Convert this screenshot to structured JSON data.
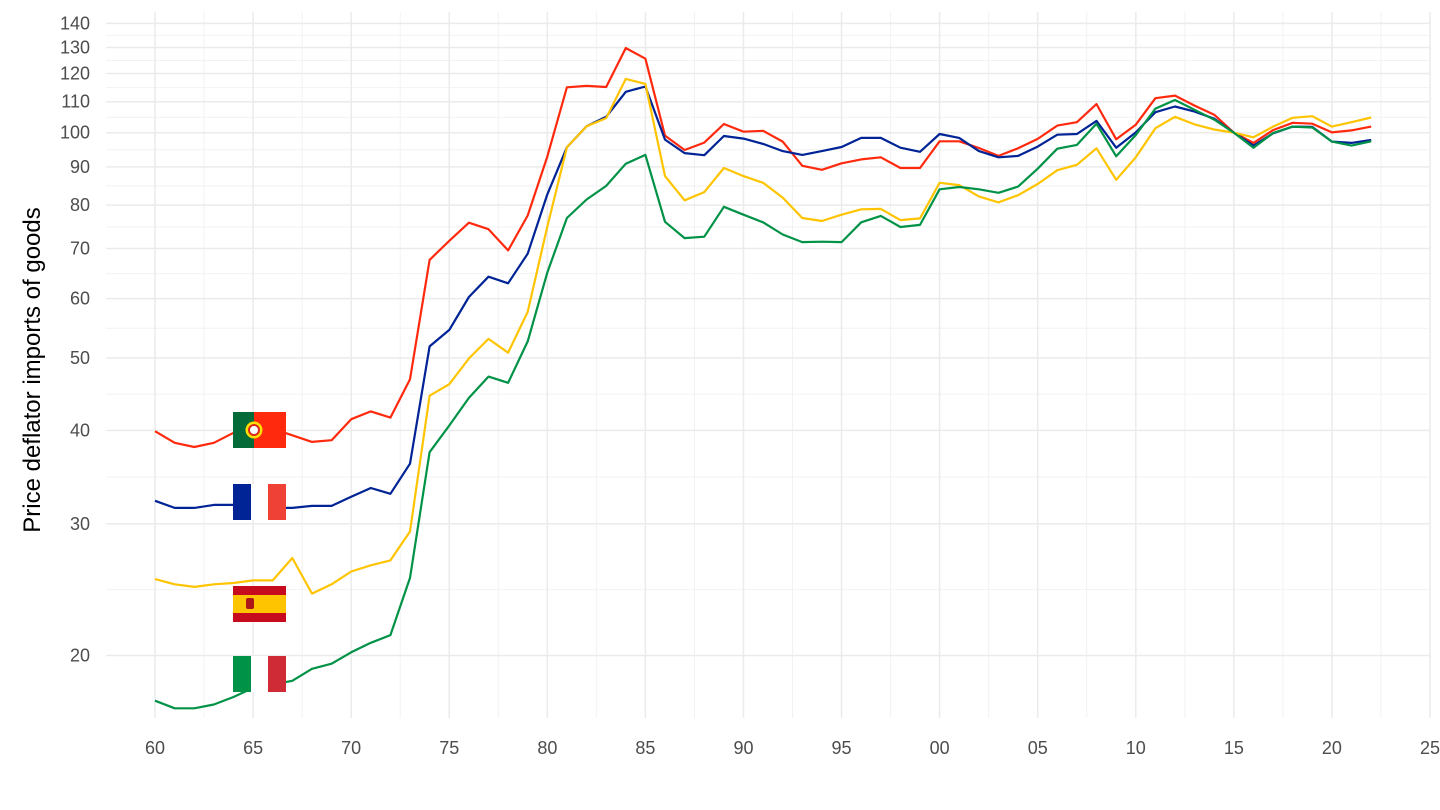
{
  "chart_data": {
    "type": "line",
    "title": "",
    "xlabel": "",
    "ylabel": "Price deflator imports of goods",
    "y_scale": "log",
    "ylim": [
      16.5,
      145
    ],
    "xlim": [
      1957.5,
      2025
    ],
    "grid": true,
    "legend": "flags at series start",
    "x_ticks": [
      {
        "value": 1960,
        "label": "60"
      },
      {
        "value": 1965,
        "label": "65"
      },
      {
        "value": 1970,
        "label": "70"
      },
      {
        "value": 1975,
        "label": "75"
      },
      {
        "value": 1980,
        "label": "80"
      },
      {
        "value": 1985,
        "label": "85"
      },
      {
        "value": 1990,
        "label": "90"
      },
      {
        "value": 1995,
        "label": "95"
      },
      {
        "value": 2000,
        "label": "00"
      },
      {
        "value": 2005,
        "label": "05"
      },
      {
        "value": 2010,
        "label": "10"
      },
      {
        "value": 2015,
        "label": "15"
      },
      {
        "value": 2020,
        "label": "20"
      },
      {
        "value": 2025,
        "label": "25"
      }
    ],
    "y_ticks": [
      20,
      30,
      40,
      50,
      60,
      70,
      80,
      90,
      100,
      110,
      120,
      130,
      140
    ],
    "series": [
      {
        "flag": "portugal-flag-icon",
        "color": "#ff2a0e",
        "x": [
          1960,
          1961,
          1962,
          1963,
          1964,
          1965,
          1966,
          1967,
          1968,
          1969,
          1970,
          1971,
          1972,
          1973,
          1974,
          1975,
          1976,
          1977,
          1978,
          1979,
          1980,
          1981,
          1982,
          1983,
          1984,
          1985,
          1986,
          1987,
          1988,
          1989,
          1990,
          1991,
          1992,
          1993,
          1994,
          1995,
          1996,
          1997,
          1998,
          1999,
          2000,
          2001,
          2002,
          2003,
          2004,
          2005,
          2006,
          2007,
          2008,
          2009,
          2010,
          2011,
          2012,
          2013,
          2014,
          2015,
          2016,
          2017,
          2018,
          2019,
          2020,
          2021,
          2022
        ],
        "y": [
          39.9,
          38.5,
          38.0,
          38.5,
          39.7,
          40.3,
          40.2,
          39.4,
          38.6,
          38.8,
          41.4,
          42.4,
          41.6,
          46.8,
          67.6,
          71.7,
          75.8,
          74.3,
          69.6,
          77.5,
          92.9,
          115.0,
          115.5,
          115.1,
          129.8,
          125.6,
          99.1,
          94.8,
          97.0,
          102.7,
          100.3,
          100.6,
          97.3,
          90.3,
          89.2,
          91.0,
          92.1,
          92.7,
          89.7,
          89.7,
          97.4,
          97.4,
          95.4,
          93.1,
          95.3,
          98.1,
          102.2,
          103.3,
          109.2,
          98.0,
          102.5,
          111.2,
          112.1,
          108.7,
          105.7,
          100.0,
          96.9,
          100.8,
          103.1,
          102.8,
          100.1,
          100.7,
          101.9
        ]
      },
      {
        "flag": "france-flag-icon",
        "color": "#002395",
        "x": [
          1960,
          1961,
          1962,
          1963,
          1964,
          1965,
          1966,
          1967,
          1968,
          1969,
          1970,
          1971,
          1972,
          1973,
          1974,
          1975,
          1976,
          1977,
          1978,
          1979,
          1980,
          1981,
          1982,
          1983,
          1984,
          1985,
          1986,
          1987,
          1988,
          1989,
          1990,
          1991,
          1992,
          1993,
          1994,
          1995,
          1996,
          1997,
          1998,
          1999,
          2000,
          2001,
          2002,
          2003,
          2004,
          2005,
          2006,
          2007,
          2008,
          2009,
          2010,
          2011,
          2012,
          2013,
          2014,
          2015,
          2016,
          2017,
          2018,
          2019,
          2020,
          2021,
          2022
        ],
        "y": [
          32.2,
          31.5,
          31.5,
          31.8,
          31.8,
          31.5,
          31.5,
          31.5,
          31.7,
          31.7,
          32.6,
          33.5,
          32.9,
          36.1,
          51.8,
          54.5,
          60.3,
          64.2,
          62.9,
          68.9,
          82.7,
          95.6,
          102.0,
          105.0,
          113.4,
          115.3,
          97.9,
          93.9,
          93.3,
          99.0,
          98.2,
          96.6,
          94.5,
          93.4,
          94.5,
          95.7,
          98.4,
          98.4,
          95.5,
          94.3,
          99.6,
          98.4,
          94.5,
          92.7,
          93.1,
          95.8,
          99.4,
          99.6,
          103.7,
          95.5,
          100.1,
          106.5,
          108.4,
          106.7,
          104.4,
          100.0,
          96.1,
          99.8,
          101.9,
          101.8,
          97.3,
          96.9,
          97.8
        ]
      },
      {
        "flag": "spain-flag-icon",
        "color": "#ffc400",
        "x": [
          1960,
          1961,
          1962,
          1963,
          1964,
          1965,
          1966,
          1967,
          1968,
          1969,
          1970,
          1971,
          1972,
          1973,
          1974,
          1975,
          1976,
          1977,
          1978,
          1979,
          1980,
          1981,
          1982,
          1983,
          1984,
          1985,
          1986,
          1987,
          1988,
          1989,
          1990,
          1991,
          1992,
          1993,
          1994,
          1995,
          1996,
          1997,
          1998,
          1999,
          2000,
          2001,
          2002,
          2003,
          2004,
          2005,
          2006,
          2007,
          2008,
          2009,
          2010,
          2011,
          2012,
          2013,
          2014,
          2015,
          2016,
          2017,
          2018,
          2019,
          2020,
          2021,
          2022
        ],
        "y": [
          25.3,
          24.9,
          24.7,
          24.9,
          25.0,
          25.2,
          25.2,
          27.0,
          24.2,
          24.9,
          25.9,
          26.4,
          26.8,
          29.3,
          44.5,
          46.1,
          49.9,
          53.0,
          50.8,
          57.6,
          74.9,
          95.6,
          102.0,
          104.6,
          118.0,
          116.2,
          87.5,
          81.2,
          83.3,
          89.7,
          87.5,
          85.7,
          81.9,
          76.9,
          76.2,
          77.7,
          79.0,
          79.1,
          76.4,
          76.8,
          85.7,
          85.1,
          82.2,
          80.7,
          82.5,
          85.4,
          89.1,
          90.6,
          95.3,
          86.5,
          92.7,
          101.4,
          105.0,
          102.6,
          101.0,
          100.0,
          98.6,
          101.9,
          104.7,
          105.2,
          101.9,
          103.3,
          104.8
        ]
      },
      {
        "flag": "italy-flag-icon",
        "color": "#009246",
        "x": [
          1960,
          1961,
          1962,
          1963,
          1964,
          1965,
          1966,
          1967,
          1968,
          1969,
          1970,
          1971,
          1972,
          1973,
          1974,
          1975,
          1976,
          1977,
          1978,
          1979,
          1980,
          1981,
          1982,
          1983,
          1984,
          1985,
          1986,
          1987,
          1988,
          1989,
          1990,
          1991,
          1992,
          1993,
          1994,
          1995,
          1996,
          1997,
          1998,
          1999,
          2000,
          2001,
          2002,
          2003,
          2004,
          2005,
          2006,
          2007,
          2008,
          2009,
          2010,
          2011,
          2012,
          2013,
          2014,
          2015,
          2016,
          2017,
          2018,
          2019,
          2020,
          2021,
          2022
        ],
        "y": [
          17.4,
          17.0,
          17.0,
          17.2,
          17.6,
          18.1,
          18.3,
          18.5,
          19.2,
          19.5,
          20.2,
          20.8,
          21.3,
          25.4,
          37.4,
          40.6,
          44.2,
          47.2,
          46.3,
          52.6,
          65.0,
          76.9,
          81.4,
          84.9,
          90.9,
          93.4,
          76.0,
          72.3,
          72.6,
          79.6,
          77.7,
          75.9,
          73.1,
          71.4,
          71.5,
          71.4,
          75.9,
          77.4,
          74.8,
          75.3,
          84.0,
          84.6,
          84.0,
          83.1,
          84.7,
          89.5,
          95.2,
          96.3,
          102.8,
          93.0,
          99.3,
          107.7,
          110.6,
          107.3,
          104.1,
          100.0,
          95.5,
          99.9,
          101.9,
          101.6,
          97.3,
          96.1,
          97.4
        ]
      }
    ]
  }
}
